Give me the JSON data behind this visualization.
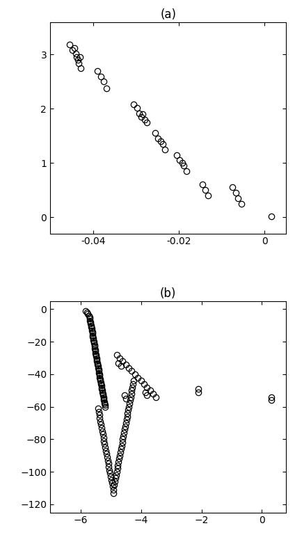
{
  "title_a": "(a)",
  "title_b": "(b)",
  "panel_a": {
    "x": [
      -0.0455,
      -0.0448,
      -0.0443,
      -0.044,
      -0.0438,
      -0.0435,
      -0.0433,
      -0.043,
      -0.0428,
      -0.039,
      -0.0382,
      -0.0375,
      -0.0368,
      -0.0305,
      -0.0298,
      -0.0292,
      -0.0288,
      -0.0285,
      -0.028,
      -0.0275,
      -0.0255,
      -0.0248,
      -0.0242,
      -0.0238,
      -0.0232,
      -0.0205,
      -0.0198,
      -0.0192,
      -0.0188,
      -0.0182,
      -0.0145,
      -0.0138,
      -0.0132,
      -0.0075,
      -0.0068,
      -0.0062,
      -0.0055,
      0.0015
    ],
    "y": [
      3.18,
      3.08,
      3.12,
      3.02,
      2.96,
      2.9,
      2.84,
      2.95,
      2.75,
      2.7,
      2.6,
      2.5,
      2.38,
      2.08,
      2.02,
      1.92,
      1.85,
      1.9,
      1.8,
      1.75,
      1.55,
      1.45,
      1.4,
      1.35,
      1.25,
      1.15,
      1.05,
      1.0,
      0.95,
      0.85,
      0.6,
      0.5,
      0.4,
      0.55,
      0.45,
      0.35,
      0.25,
      0.02
    ],
    "xlim": [
      -0.05,
      0.005
    ],
    "ylim": [
      -0.3,
      3.6
    ],
    "xticks": [
      -0.04,
      -0.02,
      0.0
    ],
    "yticks": [
      0,
      1,
      2,
      3
    ]
  },
  "panel_b": {
    "x": [
      -5.82,
      -5.78,
      -5.75,
      -5.72,
      -5.7,
      -5.7,
      -5.68,
      -5.67,
      -5.66,
      -5.65,
      -5.64,
      -5.63,
      -5.62,
      -5.61,
      -5.6,
      -5.6,
      -5.59,
      -5.58,
      -5.57,
      -5.56,
      -5.55,
      -5.54,
      -5.53,
      -5.52,
      -5.51,
      -5.5,
      -5.5,
      -5.49,
      -5.48,
      -5.47,
      -5.46,
      -5.45,
      -5.44,
      -5.43,
      -5.42,
      -5.41,
      -5.4,
      -5.4,
      -5.39,
      -5.38,
      -5.37,
      -5.36,
      -5.35,
      -5.34,
      -5.33,
      -5.32,
      -5.31,
      -5.3,
      -5.29,
      -5.28,
      -5.27,
      -5.26,
      -5.25,
      -5.24,
      -5.23,
      -5.22,
      -5.21,
      -5.2,
      -5.19,
      -5.18,
      -5.42,
      -5.4,
      -5.38,
      -5.36,
      -5.34,
      -5.32,
      -5.3,
      -5.28,
      -5.26,
      -5.24,
      -5.22,
      -5.2,
      -5.18,
      -5.16,
      -5.14,
      -5.12,
      -5.1,
      -5.08,
      -5.06,
      -5.04,
      -5.02,
      -5.0,
      -4.98,
      -4.96,
      -4.94,
      -4.92,
      -4.9,
      -4.88,
      -4.86,
      -4.84,
      -4.82,
      -4.8,
      -4.78,
      -4.76,
      -4.74,
      -4.72,
      -4.7,
      -4.68,
      -4.66,
      -4.64,
      -4.62,
      -4.6,
      -4.58,
      -4.56,
      -4.54,
      -4.52,
      -4.5,
      -4.48,
      -4.46,
      -4.44,
      -4.42,
      -4.4,
      -4.38,
      -4.36,
      -4.34,
      -4.32,
      -4.3,
      -4.28,
      -4.26,
      -4.24,
      -4.8,
      -4.7,
      -4.6,
      -4.5,
      -4.4,
      -4.3,
      -4.2,
      -4.1,
      -4.0,
      -3.9,
      -3.8,
      -3.7,
      -3.6,
      -3.5,
      -4.75,
      -4.65,
      -4.55,
      -4.5,
      -3.85,
      -3.8,
      -2.1,
      -2.1,
      0.3,
      0.3
    ],
    "y": [
      -1.0,
      -2.0,
      -3.0,
      -4.0,
      -5.0,
      -6.0,
      -7.0,
      -8.0,
      -9.0,
      -10.0,
      -11.0,
      -12.0,
      -13.0,
      -14.0,
      -15.0,
      -16.0,
      -17.0,
      -18.0,
      -19.0,
      -20.0,
      -21.0,
      -22.0,
      -23.0,
      -24.0,
      -25.0,
      -26.0,
      -27.0,
      -28.0,
      -29.0,
      -30.0,
      -31.0,
      -32.0,
      -33.0,
      -34.0,
      -35.0,
      -36.0,
      -37.0,
      -38.0,
      -39.0,
      -40.0,
      -41.0,
      -42.0,
      -43.0,
      -44.0,
      -45.0,
      -46.0,
      -47.0,
      -48.0,
      -49.0,
      -50.0,
      -51.0,
      -52.0,
      -53.0,
      -54.0,
      -55.0,
      -56.0,
      -57.0,
      -58.0,
      -59.0,
      -60.0,
      -61.0,
      -63.0,
      -65.0,
      -67.0,
      -69.0,
      -71.0,
      -73.0,
      -75.0,
      -77.0,
      -79.0,
      -81.0,
      -83.0,
      -85.0,
      -87.0,
      -89.0,
      -91.0,
      -93.0,
      -95.0,
      -97.0,
      -99.0,
      -101.0,
      -103.0,
      -105.0,
      -107.0,
      -109.0,
      -111.0,
      -113.0,
      -108.0,
      -106.0,
      -104.0,
      -102.0,
      -100.0,
      -98.0,
      -96.0,
      -94.0,
      -92.0,
      -90.0,
      -88.0,
      -86.0,
      -84.0,
      -82.0,
      -80.0,
      -78.0,
      -76.0,
      -74.0,
      -72.0,
      -70.0,
      -68.0,
      -66.0,
      -64.0,
      -62.0,
      -60.0,
      -58.0,
      -56.0,
      -54.0,
      -52.0,
      -50.0,
      -48.0,
      -46.0,
      -44.0,
      -28.0,
      -30.0,
      -32.0,
      -34.0,
      -36.0,
      -38.0,
      -40.0,
      -42.0,
      -44.0,
      -46.0,
      -48.0,
      -50.0,
      -52.0,
      -54.0,
      -33.0,
      -35.0,
      -53.0,
      -55.0,
      -51.0,
      -53.0,
      -49.0,
      -51.0,
      -54.0,
      -56.0
    ],
    "xlim": [
      -7.0,
      0.8
    ],
    "ylim": [
      -125,
      5
    ],
    "xticks": [
      -6,
      -4,
      -2,
      0
    ],
    "yticks": [
      0,
      -20,
      -40,
      -60,
      -80,
      -100,
      -120
    ]
  },
  "marker_size": 6,
  "marker_lw": 0.9,
  "bg_color": "#ffffff"
}
